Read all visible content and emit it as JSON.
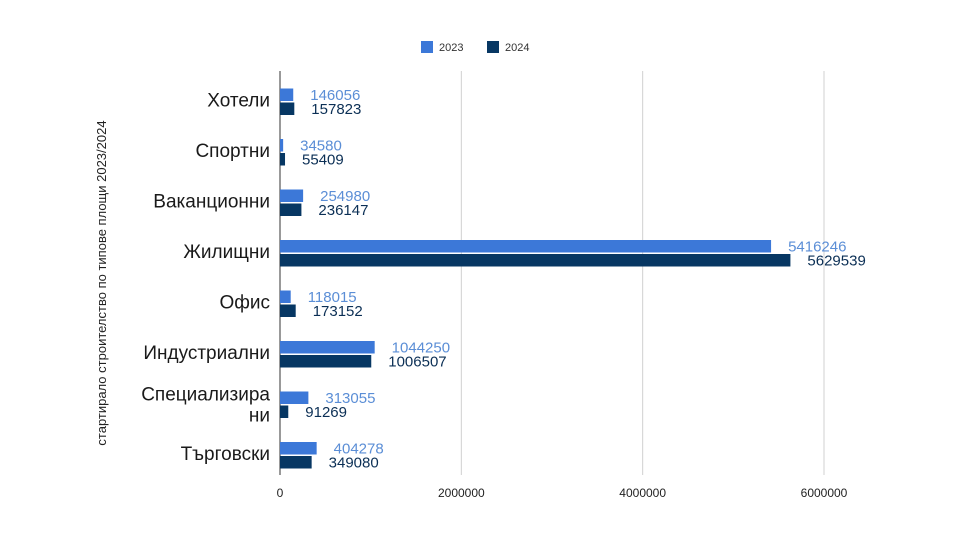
{
  "chart_data": {
    "type": "bar",
    "orientation": "horizontal",
    "title": "",
    "xlabel": "",
    "ylabel": "стартирало строителство по типове площи 2023/2024",
    "categories": [
      "Хотели",
      "Спортни",
      "Ваканционни",
      "Жилищни",
      "Офис",
      "Индустриални",
      "Специализира ни",
      "Търговски"
    ],
    "series": [
      {
        "name": "2023",
        "color": "#3c78d8",
        "values": [
          146056,
          34580,
          254980,
          5416246,
          118015,
          1044250,
          313055,
          404278
        ]
      },
      {
        "name": "2024",
        "color": "#073763",
        "values": [
          157823,
          55409,
          236147,
          5629539,
          173152,
          1006507,
          91269,
          349080
        ]
      }
    ],
    "xlim": [
      0,
      6000000
    ],
    "xticks": [
      "0",
      "2000000",
      "4000000",
      "6000000"
    ],
    "grid": true,
    "legend_position": "top"
  }
}
